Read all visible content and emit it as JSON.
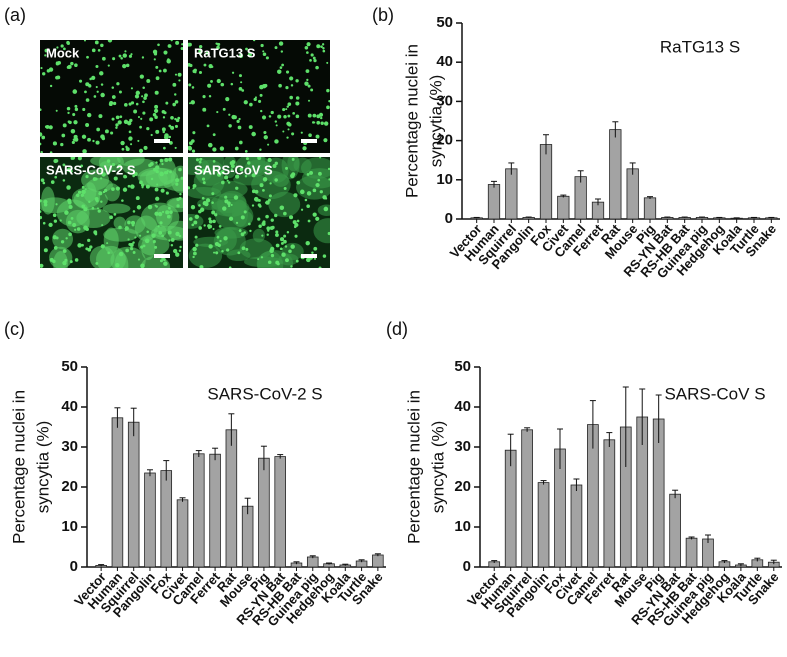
{
  "panel_labels": [
    "(a)",
    "(b)",
    "(c)",
    "(d)"
  ],
  "microscopy": {
    "labels": [
      "Mock",
      "RaTG13 S",
      "SARS-CoV-2 S",
      "SARS-CoV S"
    ]
  },
  "chart_data": [
    {
      "type": "bar",
      "title": "RaTG13 S",
      "ylabel": [
        "Percentage nuclei in",
        "syncytia (%)"
      ],
      "categories": [
        "Vector",
        "Human",
        "Squirrel",
        "Pangolin",
        "Fox",
        "Civet",
        "Camel",
        "Ferret",
        "Rat",
        "Mouse",
        "Pig",
        "RS-YN Bat",
        "RS-HB Bat",
        "Guinea pig",
        "Hedgehog",
        "Koala",
        "Turtle",
        "Snake"
      ],
      "values": [
        0.3,
        8.8,
        12.8,
        0.4,
        19,
        5.8,
        10.8,
        4.3,
        22.8,
        12.8,
        5.4,
        0.4,
        0.4,
        0.4,
        0.3,
        0.2,
        0.3,
        0.3
      ],
      "errors": [
        0.1,
        0.8,
        1.5,
        0.1,
        2.5,
        0.3,
        1.5,
        0.8,
        2,
        1.5,
        0.3,
        0.1,
        0.1,
        0.1,
        0.1,
        0.1,
        0.1,
        0.1
      ],
      "color": "#a3a3a3",
      "ylim": [
        0,
        50
      ],
      "yticks": [
        0,
        10,
        20,
        30,
        40,
        50
      ]
    },
    {
      "type": "bar",
      "title": "SARS-CoV-2 S",
      "ylabel": [
        "Percentage nuclei in",
        "syncytia (%)"
      ],
      "categories": [
        "Vector",
        "Human",
        "Squirrel",
        "Pangolin",
        "Fox",
        "Civet",
        "Camel",
        "Ferret",
        "Rat",
        "Mouse",
        "Pig",
        "RS-YN Bat",
        "RS-HB Bat",
        "Guinea pig",
        "Hedgehog",
        "Koala",
        "Turtle",
        "Snake"
      ],
      "values": [
        0.4,
        37.3,
        36.2,
        23.5,
        24.1,
        16.8,
        28.3,
        28.2,
        34.3,
        15.2,
        27.2,
        27.6,
        1.0,
        2.5,
        0.8,
        0.5,
        1.5,
        3.0
      ],
      "errors": [
        0.2,
        2.5,
        3.5,
        0.8,
        2.5,
        0.5,
        0.8,
        1.5,
        4,
        2,
        3,
        0.5,
        0.3,
        0.3,
        0.2,
        0.2,
        0.3,
        0.3
      ],
      "color": "#a3a3a3",
      "ylim": [
        0,
        50
      ],
      "yticks": [
        0,
        10,
        20,
        30,
        40,
        50
      ]
    },
    {
      "type": "bar",
      "title": "SARS-CoV S",
      "ylabel": [
        "Percentage nuclei in",
        "syncytia (%)"
      ],
      "categories": [
        "Vector",
        "Human",
        "Squirrel",
        "Pangolin",
        "Fox",
        "Civet",
        "Camel",
        "Ferret",
        "Rat",
        "Mouse",
        "Pig",
        "RS-YN Bat",
        "RS-HB Bat",
        "Guinea pig",
        "Hedgehog",
        "Koala",
        "Turtle",
        "Snake"
      ],
      "values": [
        1.3,
        29.2,
        34.3,
        21.1,
        29.5,
        20.5,
        35.6,
        31.8,
        35,
        37.5,
        37,
        18.2,
        7.2,
        7.0,
        1.3,
        0.5,
        1.8,
        1.2
      ],
      "errors": [
        0.3,
        4,
        0.5,
        0.5,
        5,
        1.5,
        6,
        1.8,
        10,
        7,
        6,
        1,
        0.3,
        1,
        0.3,
        0.3,
        0.4,
        0.5
      ],
      "color": "#a3a3a3",
      "ylim": [
        0,
        50
      ],
      "yticks": [
        0,
        10,
        20,
        30,
        40,
        50
      ]
    }
  ]
}
